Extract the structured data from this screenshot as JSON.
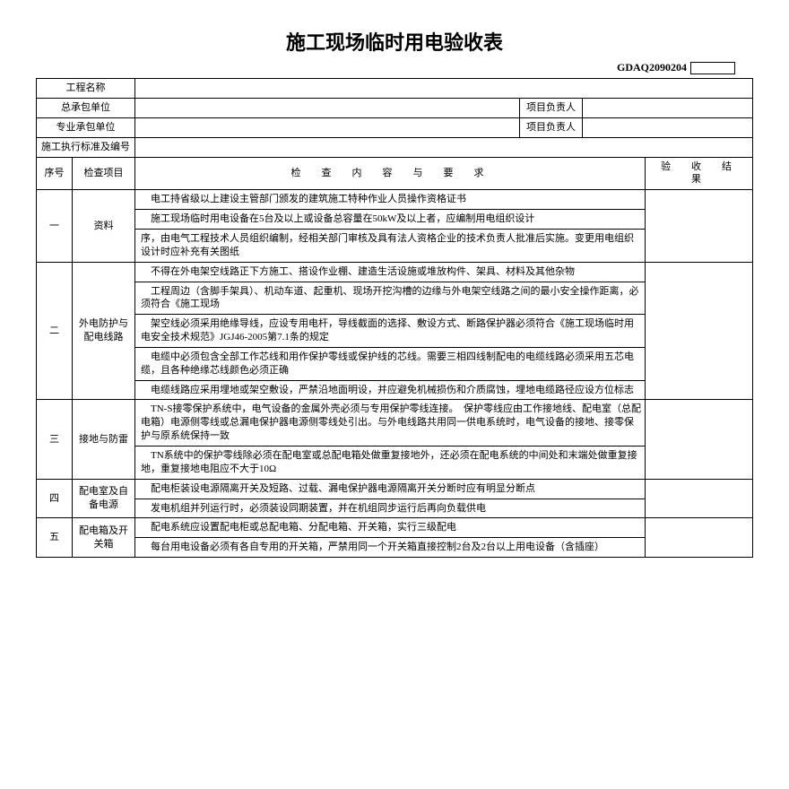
{
  "title": "施工现场临时用电验收表",
  "form_code": "GDAQ2090204",
  "header": {
    "project_name_label": "工程名称",
    "main_contractor_label": "总承包单位",
    "pro_leader_label": "项目负责人",
    "sub_contractor_label": "专业承包单位",
    "std_label": "施工执行标准及编号"
  },
  "colhead": {
    "seq": "序号",
    "item": "检查项目",
    "content": "检　查　内　容　与　要　求",
    "result": "验　收　结　果"
  },
  "rows": [
    {
      "seq": "一",
      "item": "资料",
      "lines": [
        "　电工持省级以上建设主管部门颁发的建筑施工特种作业人员操作资格证书",
        "　施工现场临时用电设备在5台及以上或设备总容量在50kW及以上者，应编制用电组织设计",
        "序，由电气工程技术人员组织编制，经相关部门审核及具有法人资格企业的技术负责人批准后实施。变更用电组织设计时应补充有关图纸"
      ]
    },
    {
      "seq": "二",
      "item": "外电防护与配电线路",
      "lines": [
        "　不得在外电架空线路正下方施工、搭设作业棚、建造生活设施或堆放构件、架具、材料及其他杂物",
        "　工程周边（含脚手架具）、机动车道、起重机、现场开挖沟槽的边缘与外电架空线路之间的最小安全操作距离，必须符合《施工现场",
        "　架空线必须采用绝缘导线，应设专用电杆，导线截面的选择、敷设方式、断路保护器必须符合《施工现场临时用电安全技术规范》JGJ46-2005第7.1条的规定",
        "　电缆中必须包含全部工作芯线和用作保护零线或保护线的芯线。需要三相四线制配电的电缆线路必须采用五芯电缆，且各种绝缘芯线颜色必须正确",
        "　电缆线路应采用埋地或架空敷设，严禁沿地面明设，并应避免机械损伤和介质腐蚀，埋地电缆路径应设方位标志"
      ]
    },
    {
      "seq": "三",
      "item": "接地与防雷",
      "lines": [
        "　TN-S接零保护系统中，电气设备的金属外壳必须与专用保护零线连接。　保护零线应由工作接地线、配电室（总配电箱）电源侧零线或总漏电保护器电源侧零线处引出。与外电线路共用同一供电系统时，电气设备的接地、接零保护与原系统保持一致",
        "　TN系统中的保护零线除必须在配电室或总配电箱处做重复接地外，还必须在配电系统的中间处和末端处做重复接地，重复接地电阻应不大于10Ω"
      ]
    },
    {
      "seq": "四",
      "item": "配电室及自备电源",
      "lines": [
        "　配电柜装设电源隔离开关及短路、过载、漏电保护器电源隔离开关分断时应有明显分断点",
        "　发电机组并列运行时，必须装设同期装置，并在机组同步运行后再向负载供电"
      ]
    },
    {
      "seq": "五",
      "item": "配电箱及开关箱",
      "lines": [
        "　配电系统应设置配电柜或总配电箱、分配电箱、开关箱，实行三级配电",
        "　每台用电设备必须有各自专用的开关箱，严禁用同一个开关箱直接控制2台及2台以上用电设备（含插座）"
      ]
    }
  ]
}
